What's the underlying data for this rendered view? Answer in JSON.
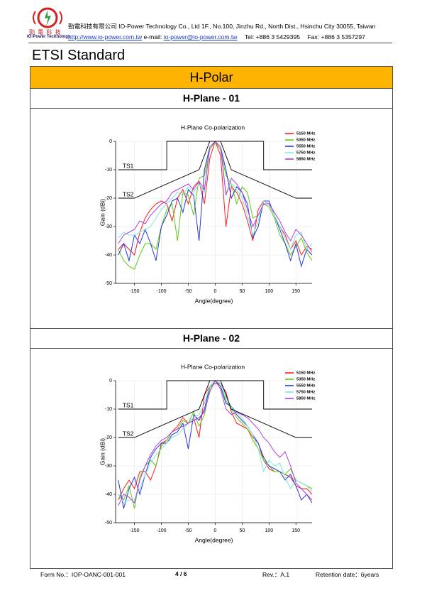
{
  "header": {
    "logo_cn": "勁 電 科 技",
    "logo_en": "IO-Power Technology",
    "company_cn": "勁電科技有限公司",
    "company_en": "IO-Power Technology Co., Ltd 1F., No.100, Jinzhu Rd., North Dist., Hsinchu City 30055, Taiwan",
    "url": "http://www.io-power.com.tw",
    "email_label": "e-mail:",
    "email": "io-power@io-power.com.tw",
    "tel": "Tel: +886 3 5429395",
    "fax": "Fax: +886 3 5357297"
  },
  "page_title": "ETSI Standard",
  "section": "H-Polar",
  "chart_data": [
    {
      "type": "line",
      "panel_title": "H-Plane - 01",
      "title": "H-Plane Co-polarization",
      "x_label": "Angle(degree)",
      "y_label": "Gain (dBi)",
      "xlim": [
        -185,
        180
      ],
      "xticks": [
        -150,
        -100,
        -50,
        0,
        50,
        100,
        150
      ],
      "ylim": [
        -50,
        0
      ],
      "yticks": [
        -50,
        -40,
        -30,
        -20,
        -10,
        0
      ],
      "grid": true,
      "legend": "upper right",
      "x": [
        -180,
        -170,
        -160,
        -150,
        -140,
        -130,
        -120,
        -110,
        -100,
        -90,
        -80,
        -70,
        -60,
        -50,
        -40,
        -30,
        -20,
        -10,
        0,
        10,
        20,
        30,
        40,
        50,
        60,
        70,
        80,
        90,
        100,
        110,
        120,
        130,
        140,
        150,
        160,
        170,
        180
      ],
      "series": [
        {
          "name": "5150 MHz",
          "color": "#ff1a1a",
          "values": [
            -38,
            -36,
            -38,
            -40,
            -32,
            -27,
            -24,
            -22,
            -21,
            -22,
            -28,
            -20,
            -17,
            -22,
            -16,
            -14,
            -22,
            -6,
            0,
            -5,
            -30,
            -16,
            -18,
            -22,
            -28,
            -35,
            -24,
            -21,
            -22,
            -26,
            -30,
            -33,
            -38,
            -35,
            -40,
            -37,
            -38
          ]
        },
        {
          "name": "5350 MHz",
          "color": "#5ccc14",
          "values": [
            -38,
            -42,
            -44,
            -45,
            -40,
            -36,
            -36,
            -38,
            -30,
            -24,
            -22,
            -35,
            -18,
            -19,
            -26,
            -13,
            -12,
            -3,
            0,
            -3,
            -12,
            -15,
            -22,
            -16,
            -18,
            -27,
            -26,
            -22,
            -23,
            -27,
            -33,
            -36,
            -40,
            -37,
            -34,
            -39,
            -42
          ]
        },
        {
          "name": "5550 MHz",
          "color": "#2438d6",
          "values": [
            -40,
            -36,
            -42,
            -33,
            -36,
            -31,
            -36,
            -42,
            -30,
            -26,
            -21,
            -20,
            -25,
            -17,
            -19,
            -35,
            -10,
            -2,
            0,
            -2,
            -10,
            -20,
            -16,
            -18,
            -22,
            -34,
            -30,
            -21,
            -21,
            -26,
            -31,
            -36,
            -42,
            -36,
            -44,
            -38,
            -40
          ]
        },
        {
          "name": "5750 MHz",
          "color": "#7ee8dc",
          "values": [
            -34,
            -32,
            -33,
            -33,
            -32,
            -31,
            -30,
            -27,
            -24,
            -22,
            -20,
            -18,
            -19,
            -16,
            -18,
            -15,
            -18,
            -2,
            0,
            -2,
            -18,
            -15,
            -17,
            -20,
            -26,
            -33,
            -28,
            -21,
            -22,
            -26,
            -30,
            -34,
            -38,
            -33,
            -32,
            -38,
            -36
          ]
        },
        {
          "name": "5850 MHz",
          "color": "#b03ee0",
          "values": [
            -36,
            -33,
            -32,
            -31,
            -28,
            -29,
            -26,
            -24,
            -22,
            -21,
            -18,
            -17,
            -16,
            -15,
            -17,
            -14,
            -17,
            -2,
            0,
            -2,
            -19,
            -13,
            -15,
            -18,
            -24,
            -30,
            -26,
            -22,
            -22,
            -25,
            -28,
            -32,
            -35,
            -31,
            -33,
            -36,
            -39
          ]
        }
      ],
      "masks": [
        {
          "name": "TS1",
          "x": [
            -180,
            -90,
            -90,
            90,
            90,
            180
          ],
          "values": [
            -10,
            -10,
            0,
            0,
            -10,
            -10
          ]
        },
        {
          "name": "TS2",
          "x": [
            -180,
            -150,
            -30,
            -10,
            10,
            30,
            150,
            180
          ],
          "values": [
            -20,
            -20,
            -10,
            0,
            0,
            -10,
            -20,
            -20
          ]
        }
      ]
    },
    {
      "type": "line",
      "panel_title": "H-Plane - 02",
      "title": "H-Plane Co-polarization",
      "x_label": "Angle(degree)",
      "y_label": "Gain (dBi)",
      "xlim": [
        -185,
        180
      ],
      "xticks": [
        -150,
        -100,
        -50,
        0,
        50,
        100,
        150
      ],
      "ylim": [
        -50,
        0
      ],
      "yticks": [
        -50,
        -40,
        -30,
        -20,
        -10,
        0
      ],
      "grid": true,
      "legend": "upper right",
      "x": [
        -180,
        -170,
        -160,
        -150,
        -140,
        -130,
        -120,
        -110,
        -100,
        -90,
        -80,
        -70,
        -60,
        -50,
        -40,
        -30,
        -20,
        -10,
        0,
        10,
        20,
        30,
        40,
        50,
        60,
        70,
        80,
        90,
        100,
        110,
        120,
        130,
        140,
        150,
        160,
        170,
        180
      ],
      "series": [
        {
          "name": "5150 MHz",
          "color": "#ff1a1a",
          "values": [
            -42,
            -38,
            -35,
            -38,
            -32,
            -32,
            -35,
            -30,
            -22,
            -21,
            -18,
            -16,
            -13,
            -15,
            -13,
            -20,
            -5,
            -2,
            -1,
            -1,
            -4,
            -11,
            -15,
            -16,
            -17,
            -20,
            -22,
            -28,
            -31,
            -32,
            -32,
            -33,
            -34,
            -37,
            -38,
            -38,
            -40
          ]
        },
        {
          "name": "5350 MHz",
          "color": "#5ccc14",
          "values": [
            -40,
            -42,
            -37,
            -45,
            -34,
            -30,
            -28,
            -30,
            -23,
            -21,
            -18,
            -17,
            -14,
            -15,
            -11,
            -16,
            -12,
            -3,
            0,
            -2,
            -7,
            -10,
            -13,
            -15,
            -17,
            -21,
            -24,
            -28,
            -30,
            -32,
            -32,
            -33,
            -31,
            -35,
            -36,
            -37,
            -38
          ]
        },
        {
          "name": "5550 MHz",
          "color": "#2438d6",
          "values": [
            -35,
            -45,
            -38,
            -34,
            -40,
            -33,
            -27,
            -24,
            -22,
            -22,
            -19,
            -18,
            -15,
            -24,
            -12,
            -14,
            -10,
            -2,
            0,
            -2,
            -8,
            -9,
            -12,
            -14,
            -16,
            -19,
            -22,
            -27,
            -30,
            -31,
            -32,
            -35,
            -33,
            -37,
            -42,
            -40,
            -43
          ]
        },
        {
          "name": "5750 MHz",
          "color": "#7ee8dc",
          "values": [
            -40,
            -43,
            -42,
            -42,
            -38,
            -33,
            -29,
            -26,
            -24,
            -22,
            -20,
            -19,
            -17,
            -15,
            -13,
            -12,
            -8,
            -2,
            0,
            -1,
            -6,
            -9,
            -11,
            -13,
            -16,
            -19,
            -24,
            -32,
            -28,
            -30,
            -29,
            -34,
            -38,
            -35,
            -36,
            -37,
            -39
          ]
        },
        {
          "name": "5850 MHz",
          "color": "#b03ee0",
          "values": [
            -44,
            -40,
            -41,
            -43,
            -35,
            -30,
            -26,
            -23,
            -21,
            -20,
            -18,
            -17,
            -16,
            -15,
            -14,
            -13,
            -11,
            -4,
            0,
            -3,
            -10,
            -12,
            -11,
            -12,
            -13,
            -15,
            -17,
            -20,
            -22,
            -25,
            -27,
            -25,
            -30,
            -36,
            -38,
            -40,
            -42
          ]
        }
      ],
      "masks": [
        {
          "name": "TS1",
          "x": [
            -180,
            -90,
            -90,
            90,
            90,
            180
          ],
          "values": [
            -10,
            -10,
            0,
            0,
            -10,
            -10
          ]
        },
        {
          "name": "TS2",
          "x": [
            -180,
            -150,
            -30,
            -10,
            10,
            30,
            150,
            180
          ],
          "values": [
            -20,
            -20,
            -10,
            0,
            0,
            -10,
            -20,
            -20
          ]
        }
      ]
    }
  ],
  "footer": {
    "form": "Form No.：IOP-OANC-001-001",
    "page": "4 / 6",
    "rev": "Rev.：A.1",
    "retention": "Retention date：6years"
  }
}
